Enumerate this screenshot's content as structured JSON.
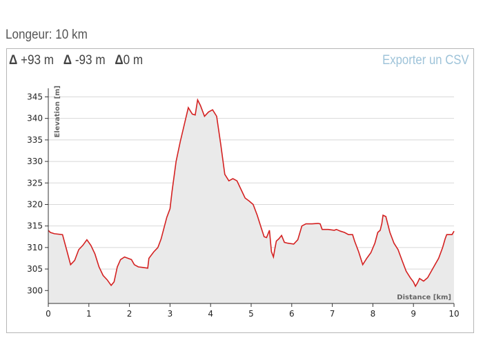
{
  "header": {
    "length": "Longeur: 10 km"
  },
  "stats": {
    "delta_symbol": "Δ",
    "gain": "+93 m",
    "loss": "-93 m",
    "net": "0 m"
  },
  "export_label": "Exporter un CSV",
  "colors": {
    "line": "#d42020",
    "fill": "#eaeaea",
    "grid": "#d8d8d8",
    "export": "#9ec3d9"
  },
  "chart_data": {
    "type": "area",
    "xlabel": "Distance [km]",
    "ylabel": "Elevation [m]",
    "xlim": [
      0,
      10
    ],
    "ylim": [
      297,
      347
    ],
    "x_ticks": [
      0,
      1,
      2,
      3,
      4,
      5,
      6,
      7,
      8,
      9,
      10
    ],
    "y_ticks": [
      300,
      305,
      310,
      315,
      320,
      325,
      330,
      335,
      340,
      345
    ],
    "grid": "horizontal",
    "series": [
      {
        "x": [
          0,
          0.05,
          0.15,
          0.35,
          0.45,
          0.55,
          0.65,
          0.75,
          0.85,
          0.95,
          1.05,
          1.15,
          1.25,
          1.35,
          1.45,
          1.55,
          1.62,
          1.7,
          1.78,
          1.88,
          2.05,
          2.12,
          2.22,
          2.3,
          2.45,
          2.48,
          2.6,
          2.7,
          2.78,
          2.85,
          2.92,
          3.0,
          3.05,
          3.15,
          3.25,
          3.35,
          3.45,
          3.55,
          3.62,
          3.68,
          3.75,
          3.85,
          3.95,
          4.05,
          4.15,
          4.25,
          4.35,
          4.45,
          4.55,
          4.65,
          4.75,
          4.85,
          4.95,
          5.05,
          5.15,
          5.25,
          5.32,
          5.38,
          5.45,
          5.5,
          5.55,
          5.58,
          5.6,
          5.62,
          5.68,
          5.75,
          5.82,
          5.9,
          6.05,
          6.15,
          6.25,
          6.35,
          6.5,
          6.65,
          6.7,
          6.75,
          6.9,
          7.05,
          7.1,
          7.2,
          7.3,
          7.4,
          7.5,
          7.55,
          7.65,
          7.75,
          7.85,
          7.95,
          8.05,
          8.12,
          8.18,
          8.22,
          8.25,
          8.32,
          8.42,
          8.52,
          8.62,
          8.72,
          8.82,
          8.92,
          9.0,
          9.05,
          9.1,
          9.15,
          9.25,
          9.35,
          9.5,
          9.62,
          9.72,
          9.78,
          9.82,
          9.9,
          9.95,
          10.0
        ],
        "y": [
          314.0,
          313.5,
          313.2,
          313.0,
          309.5,
          306.0,
          307.0,
          309.5,
          310.5,
          311.8,
          310.5,
          308.5,
          305.5,
          303.5,
          302.5,
          301.2,
          302.0,
          305.5,
          307.2,
          307.8,
          307.2,
          306.0,
          305.5,
          305.4,
          305.2,
          307.5,
          309.0,
          310.0,
          312.0,
          314.5,
          317.0,
          319.0,
          323.0,
          330.0,
          334.5,
          338.5,
          342.5,
          341.0,
          340.8,
          344.3,
          343.0,
          340.5,
          341.5,
          342.0,
          340.5,
          334.0,
          327.0,
          325.5,
          326.0,
          325.5,
          323.5,
          321.5,
          320.8,
          320.0,
          317.5,
          314.5,
          312.5,
          312.3,
          314.0,
          309.0,
          307.8,
          309.5,
          310.5,
          311.5,
          312.0,
          312.8,
          311.2,
          311.0,
          310.8,
          311.8,
          315.0,
          315.5,
          315.5,
          315.6,
          315.5,
          314.2,
          314.2,
          314.0,
          314.2,
          313.8,
          313.5,
          313.0,
          313.0,
          311.5,
          309.0,
          306.0,
          307.5,
          308.8,
          311.0,
          313.5,
          314.0,
          315.5,
          317.5,
          317.2,
          313.5,
          311.0,
          309.5,
          307.0,
          304.5,
          303.0,
          302.0,
          301.0,
          301.8,
          302.8,
          302.2,
          303.0,
          305.5,
          307.5,
          310.0,
          312.0,
          313.0,
          313.0,
          313.0,
          313.8
        ]
      }
    ]
  }
}
